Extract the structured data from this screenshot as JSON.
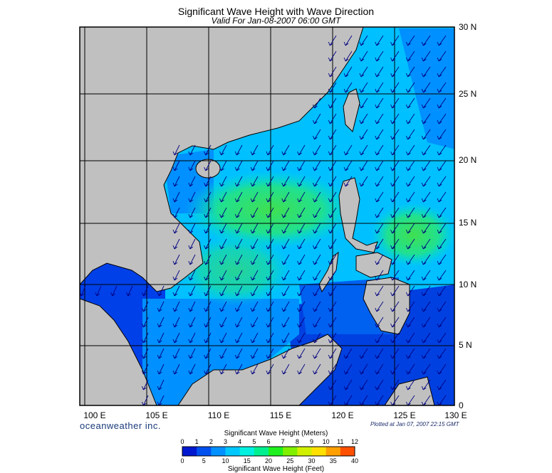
{
  "title": "Significant Wave Height with Wave Direction",
  "subtitle": "Valid For Jan-08-2007 06:00 GMT",
  "longitude_labels": [
    "100 E",
    "105 E",
    "110 E",
    "115 E",
    "120 E",
    "125 E",
    "130 E"
  ],
  "latitude_labels": [
    "30 N",
    "25 N",
    "20 N",
    "15 N",
    "10 N",
    "5 N",
    "0"
  ],
  "brand": "oceanweather inc.",
  "plotted": "Plotted at Jan 07, 2007 22:15 GMT",
  "colorbar": {
    "title_top": "Significant Wave Height (Meters)",
    "title_bottom": "Significant Wave Height (Feet)",
    "meters_ticks": [
      "0",
      "1",
      "2",
      "3",
      "4",
      "5",
      "6",
      "7",
      "8",
      "9",
      "10",
      "11",
      "12"
    ],
    "feet_ticks": [
      "0",
      "5",
      "10",
      "15",
      "20",
      "25",
      "30",
      "35",
      "40"
    ],
    "colors": [
      "#0018d0",
      "#0050f0",
      "#0090ff",
      "#00c8ff",
      "#00f0e0",
      "#00f090",
      "#20f020",
      "#80f000",
      "#d0f000",
      "#ffe000",
      "#ffa000",
      "#ff5000"
    ]
  },
  "colors": {
    "land": "#c0c0c0",
    "deep_blue": "#0030e0",
    "mid_blue": "#0080ff",
    "cyan": "#00d8ff",
    "green": "#20e060",
    "arrow": "#000080"
  }
}
